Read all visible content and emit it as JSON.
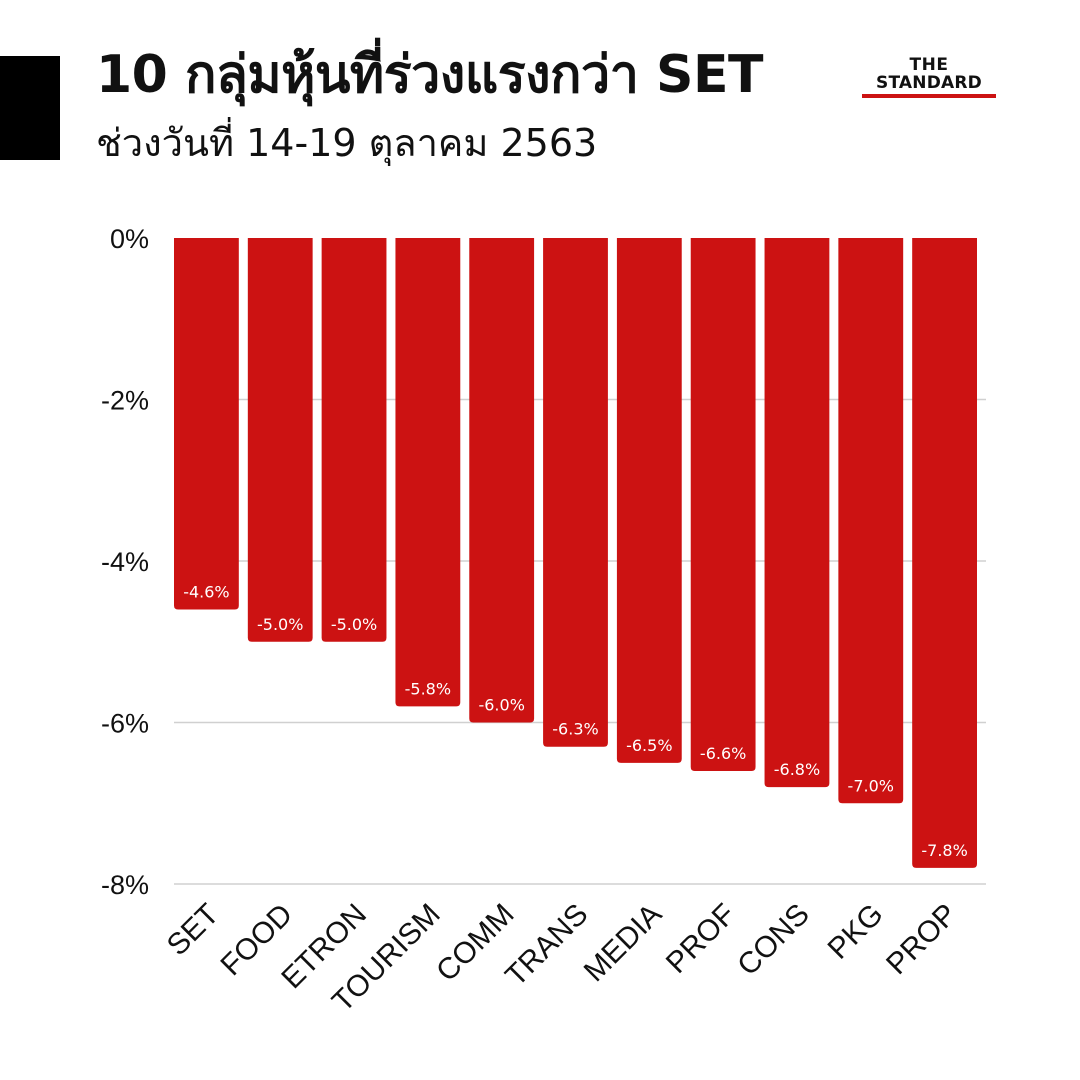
{
  "header": {
    "title": "10 กลุ่มหุ้นที่ร่วงแรงกว่า SET",
    "subtitle": "ช่วงวันที่ 14-19 ตุลาคม 2563",
    "logo_line1": "THE",
    "logo_line2": "STANDARD"
  },
  "colors": {
    "bar": "#cc1212",
    "grid": "#d0d0d0",
    "text": "#111111",
    "logo_accent": "#cc1212"
  },
  "chart_data": {
    "type": "bar",
    "categories": [
      "SET",
      "FOOD",
      "ETRON",
      "TOURISM",
      "COMM",
      "TRANS",
      "MEDIA",
      "PROF",
      "CONS",
      "PKG",
      "PROP"
    ],
    "values": [
      -4.6,
      -5.0,
      -5.0,
      -5.8,
      -6.0,
      -6.3,
      -6.5,
      -6.6,
      -6.8,
      -7.0,
      -7.8
    ],
    "data_labels": [
      "-4.6%",
      "-5.0%",
      "-5.0%",
      "-5.8%",
      "-6.0%",
      "-6.3%",
      "-6.5%",
      "-6.6%",
      "-6.8%",
      "-7.0%",
      "-7.8%"
    ],
    "yticks": [
      0,
      -2,
      -4,
      -6,
      -8
    ],
    "ytick_labels": [
      "0%",
      "-2%",
      "-4%",
      "-6%",
      "-8%"
    ],
    "ylim": [
      -8,
      0
    ],
    "grid": true,
    "xlabel": "",
    "ylabel": ""
  }
}
